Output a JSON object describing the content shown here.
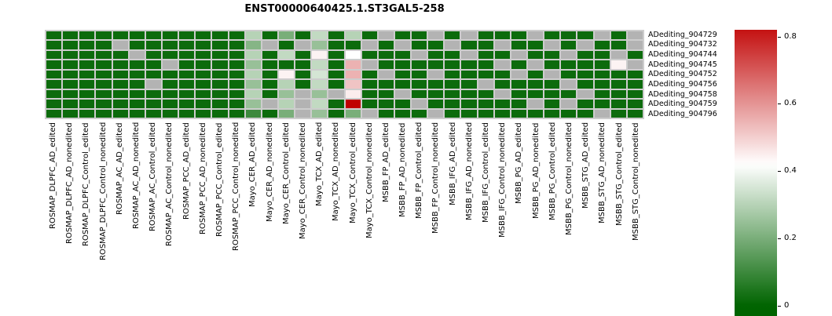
{
  "title": "ENST00000640425.1.ST3GAL5-258",
  "chart_data": {
    "type": "heatmap",
    "title": "ENST00000640425.1.ST3GAL5-258",
    "rows": [
      "ADediting_904729",
      "ADediting_904732",
      "ADediting_904744",
      "ADediting_904745",
      "ADediting_904752",
      "ADediting_904756",
      "ADediting_904758",
      "ADediting_904759",
      "ADediting_904796"
    ],
    "columns": [
      "ROSMAP_DLPFC_AD_edited",
      "ROSMAP_DLPFC_AD_nonedited",
      "ROSMAP_DLPFC_Control_edited",
      "ROSMAP_DLPFC_Control_nonedited",
      "ROSMAP_AC_AD_edited",
      "ROSMAP_AC_AD_nonedited",
      "ROSMAP_AC_Control_edited",
      "ROSMAP_AC_Control_nonedited",
      "ROSMAP_PCC_AD_edited",
      "ROSMAP_PCC_AD_nonedited",
      "ROSMAP_PCC_Control_edited",
      "ROSMAP_PCC_Control_nonedited",
      "Mayo_CER_AD_edited",
      "Mayo_CER_AD_nonedited",
      "Mayo_CER_Control_edited",
      "Mayo_CER_Control_nonedited",
      "Mayo_TCX_AD_edited",
      "Mayo_TCX_AD_nonedited",
      "Mayo_TCX_Control_edited",
      "Mayo_TCX_Control_nonedited",
      "MSBB_FP_AD_edited",
      "MSBB_FP_AD_nonedited",
      "MSBB_FP_Control_edited",
      "MSBB_FP_Control_nonedited",
      "MSBB_IFG_AD_edited",
      "MSBB_IFG_AD_nonedited",
      "MSBB_IFG_Control_edited",
      "MSBB_IFG_Control_nonedited",
      "MSBB_PG_AD_edited",
      "MSBB_PG_AD_nonedited",
      "MSBB_PG_Control_edited",
      "MSBB_PG_Control_nonedited",
      "MSBB_STG_AD_edited",
      "MSBB_STG_AD_nonedited",
      "MSBB_STG_Control_edited",
      "MSBB_STG_Control_nonedited"
    ],
    "values": [
      [
        0.02,
        0.02,
        0.02,
        0.02,
        0.02,
        0.02,
        0.02,
        0.02,
        0.02,
        0.02,
        0.02,
        0.02,
        0.3,
        0.02,
        0.2,
        0.02,
        0.32,
        0.02,
        0.3,
        0.02,
        null,
        0.02,
        0.02,
        null,
        0.02,
        null,
        0.02,
        0.02,
        0.02,
        null,
        0.02,
        0.02,
        0.02,
        null,
        0.02,
        null
      ],
      [
        0.02,
        0.02,
        0.02,
        0.02,
        null,
        0.02,
        0.02,
        0.02,
        0.02,
        0.02,
        0.02,
        0.02,
        0.22,
        null,
        0.02,
        null,
        0.25,
        0.02,
        0.02,
        null,
        0.02,
        null,
        0.02,
        0.02,
        null,
        0.02,
        0.02,
        null,
        0.02,
        0.02,
        null,
        0.02,
        null,
        0.02,
        0.02,
        null
      ],
      [
        0.02,
        0.02,
        0.02,
        0.02,
        0.02,
        null,
        0.02,
        0.02,
        0.02,
        0.02,
        0.02,
        0.02,
        0.3,
        0.02,
        0.32,
        0.02,
        0.44,
        0.02,
        0.42,
        0.02,
        0.02,
        0.02,
        null,
        0.02,
        0.02,
        null,
        0.02,
        0.02,
        null,
        0.02,
        0.02,
        null,
        0.02,
        0.02,
        null,
        0.02
      ],
      [
        0.02,
        0.02,
        0.02,
        0.02,
        0.02,
        0.02,
        0.02,
        null,
        0.02,
        0.02,
        0.02,
        0.02,
        0.25,
        0.02,
        0.02,
        0.02,
        0.32,
        0.02,
        0.55,
        null,
        0.02,
        0.02,
        0.02,
        0.02,
        0.02,
        0.02,
        0.02,
        null,
        0.02,
        null,
        0.02,
        0.02,
        0.02,
        0.02,
        0.44,
        null
      ],
      [
        0.02,
        0.02,
        0.02,
        0.02,
        0.02,
        0.02,
        0.02,
        0.02,
        0.02,
        0.02,
        0.02,
        0.02,
        0.3,
        0.02,
        0.44,
        0.02,
        0.35,
        0.02,
        0.55,
        0.02,
        null,
        0.02,
        0.02,
        null,
        0.02,
        0.02,
        0.02,
        0.02,
        null,
        0.02,
        null,
        0.02,
        0.02,
        0.02,
        0.02,
        0.02
      ],
      [
        0.02,
        0.02,
        0.02,
        0.02,
        0.02,
        0.02,
        null,
        0.02,
        0.02,
        0.02,
        0.02,
        0.02,
        0.25,
        0.02,
        0.3,
        0.02,
        0.32,
        0.02,
        0.52,
        0.02,
        0.02,
        0.02,
        0.02,
        0.02,
        0.02,
        0.02,
        null,
        0.02,
        0.02,
        0.02,
        0.02,
        null,
        0.02,
        0.02,
        0.02,
        0.02
      ],
      [
        0.02,
        0.02,
        0.02,
        0.02,
        0.02,
        0.02,
        0.02,
        0.02,
        0.02,
        0.02,
        0.02,
        0.02,
        0.3,
        0.02,
        0.25,
        null,
        0.25,
        null,
        0.45,
        0.02,
        0.02,
        null,
        0.02,
        0.02,
        0.02,
        0.02,
        0.02,
        null,
        0.02,
        0.02,
        0.02,
        0.02,
        null,
        0.02,
        0.02,
        0.02
      ],
      [
        0.02,
        0.02,
        0.02,
        0.02,
        0.02,
        0.02,
        0.02,
        0.02,
        0.02,
        0.02,
        0.02,
        0.02,
        0.25,
        null,
        0.3,
        null,
        0.32,
        0.02,
        0.85,
        0.02,
        0.02,
        0.02,
        null,
        0.02,
        0.02,
        0.02,
        0.02,
        0.02,
        0.02,
        null,
        0.02,
        null,
        0.02,
        0.02,
        0.02,
        0.02
      ],
      [
        0.02,
        0.02,
        0.02,
        0.02,
        0.02,
        0.02,
        0.02,
        0.02,
        0.02,
        0.02,
        0.02,
        0.02,
        0.1,
        0.02,
        0.2,
        null,
        0.25,
        0.02,
        0.2,
        null,
        0.02,
        0.02,
        0.02,
        null,
        0.02,
        0.02,
        0.02,
        0.02,
        0.02,
        0.02,
        0.02,
        0.02,
        0.02,
        null,
        0.02,
        0.02
      ]
    ],
    "colorbar": {
      "ticks": [
        {
          "label": "0.8",
          "value": 0.8
        },
        {
          "label": "0.6",
          "value": 0.6
        },
        {
          "label": "0.4",
          "value": 0.4
        },
        {
          "label": "0.2",
          "value": 0.2
        },
        {
          "label": "0",
          "value": 0.0
        }
      ],
      "value_top": 0.82,
      "value_bottom": -0.03
    },
    "color_scale": {
      "vmin": 0,
      "vmid": 0.42,
      "vmax": 0.85,
      "color_low": "#006400",
      "color_mid": "#ffffff",
      "color_high": "#c00000",
      "color_na": "#b3b3b3"
    },
    "legend_position": "right",
    "grid": true
  }
}
